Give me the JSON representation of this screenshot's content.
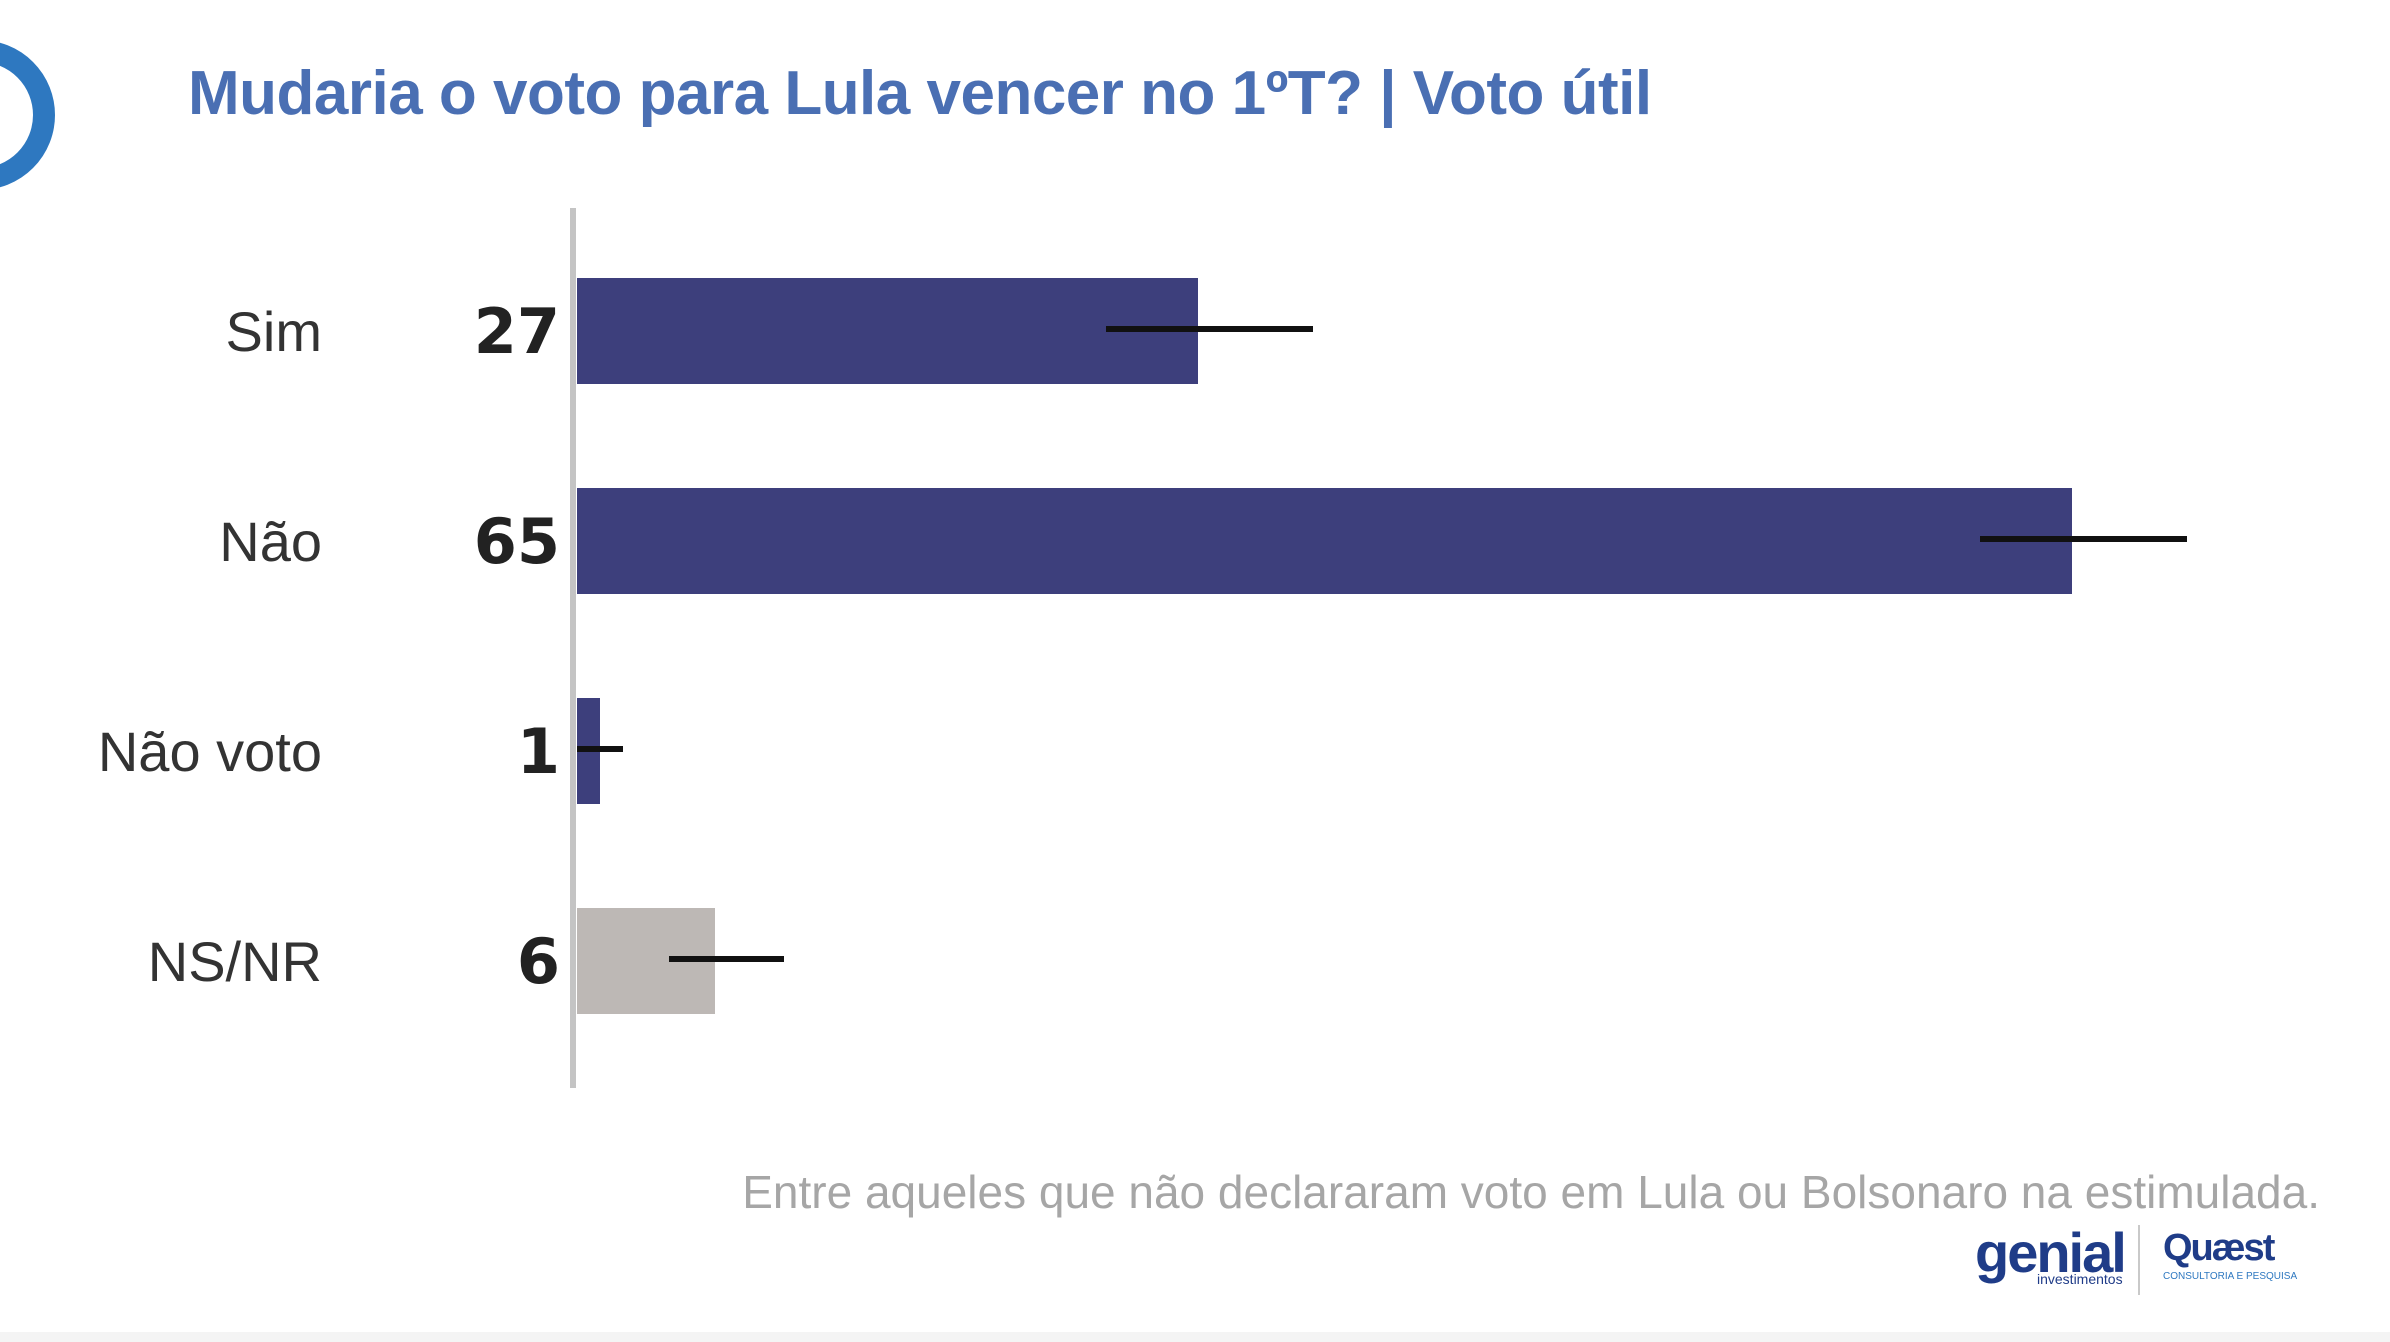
{
  "title": "Mudaria o voto para Lula vencer no 1ºT? | Voto útil",
  "note": "Entre aqueles que não declararam voto em Lula ou Bolsonaro  na estimulada.",
  "logos": {
    "genial": "genial",
    "genial_sub": "investimentos",
    "quaest": "Quæst",
    "quaest_sub": "CONSULTORIA E PESQUISA"
  },
  "colors": {
    "title": "#4a6fb3",
    "bar_primary": "#3d3f7c",
    "bar_neutral": "#bdb8b5",
    "error_bar": "#111111",
    "axis": "#c4c4c4",
    "decoration": "#2e78c0"
  },
  "chart_data": {
    "type": "bar",
    "orientation": "horizontal",
    "categories": [
      "Sim",
      "Não",
      "Não voto",
      "NS/NR"
    ],
    "values": [
      27,
      65,
      1,
      6
    ],
    "value_labels": [
      "27",
      "65",
      "1",
      "6"
    ],
    "error_bars": [
      [
        23,
        32
      ],
      [
        61,
        70
      ],
      [
        0,
        2
      ],
      [
        4,
        9
      ]
    ],
    "bar_colors": [
      "#3d3f7c",
      "#3d3f7c",
      "#3d3f7c",
      "#bdb8b5"
    ],
    "xlim": [
      0,
      80
    ],
    "grid": false,
    "legend": "none"
  }
}
